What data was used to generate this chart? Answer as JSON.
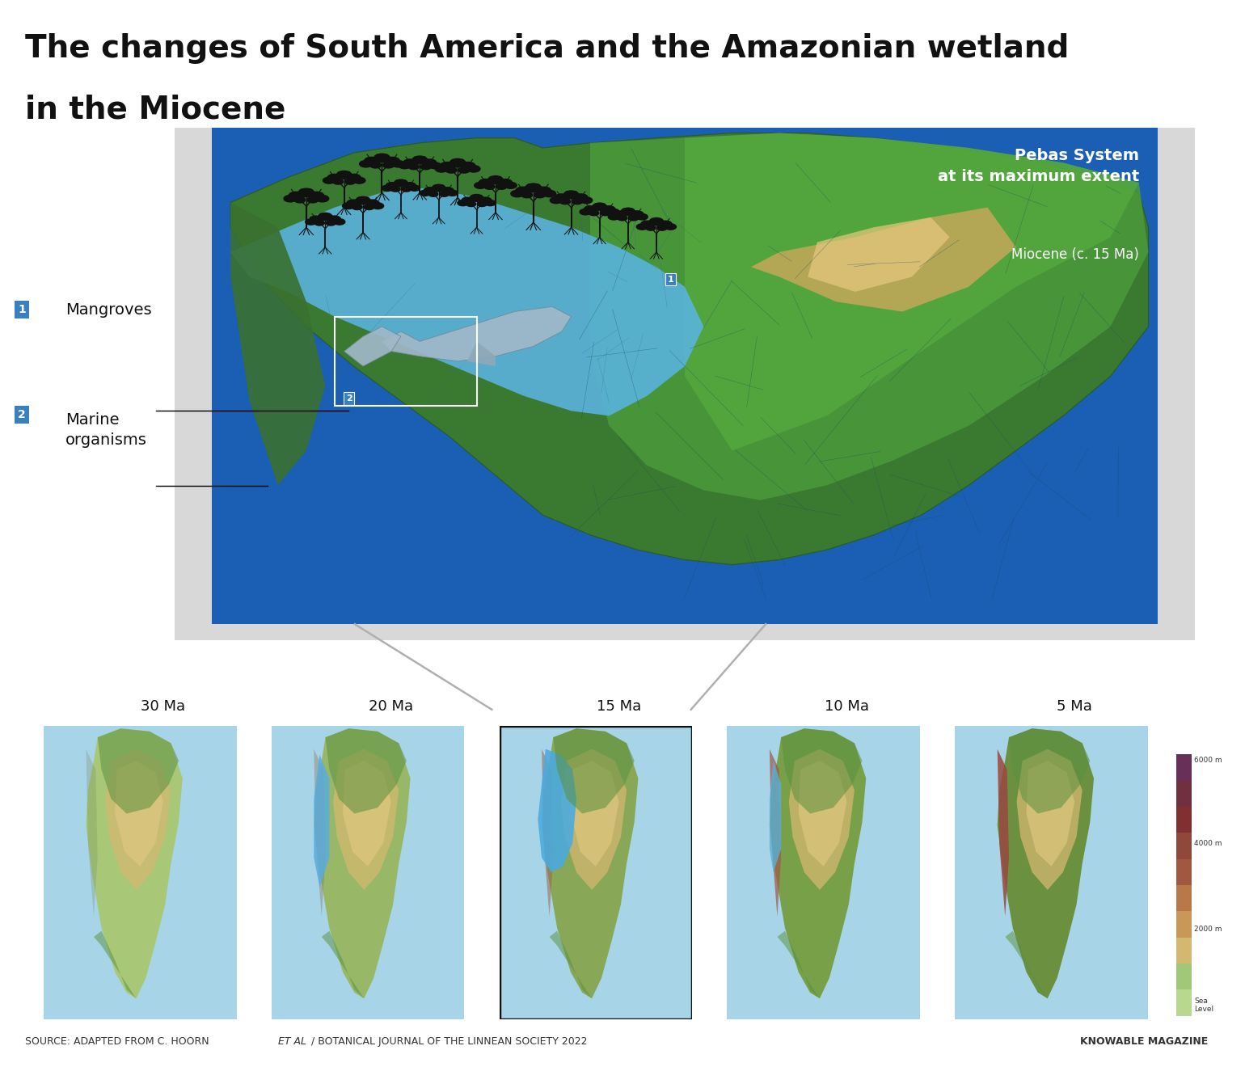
{
  "title_line1": "The changes of South America and the Amazonian wetland",
  "title_line2": "in the Miocene",
  "title_fontsize": 28,
  "title_color": "#111111",
  "bg_color": "#ffffff",
  "top_bar_color": "#b8d8e0",
  "pebas_title": "Pebas System\nat its maximum extent",
  "pebas_subtitle": "Miocene (c. 15 Ma)",
  "pebas_text_color": "#ffffff",
  "label1_box_color": "#4a90c4",
  "label2_box_color": "#4a90c4",
  "label1_text": "Mangroves",
  "label2_text": "Marine\norganisms",
  "map_labels": [
    "30 Ma",
    "20 Ma",
    "15 Ma",
    "10 Ma",
    "5 Ma"
  ],
  "highlighted_map_index": 2,
  "source_right": "KNOWABLE MAGAZINE",
  "footer_color": "#333333",
  "footer_fontsize": 9,
  "ocean_color_main": "#1a5fb4",
  "land_green_dark": "#2d6a2d",
  "land_green_mid": "#5a9a3a",
  "land_tan": "#c4a862",
  "water_light": "#5bb8e8",
  "andes_brown": "#8b5e3c",
  "panel_bg": "#d8d8d8",
  "small_map_ocean": "#a8d4e8"
}
